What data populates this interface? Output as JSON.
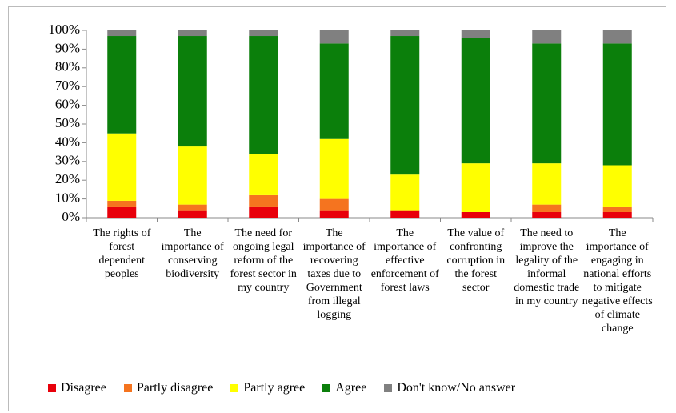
{
  "chart_data": {
    "type": "stacked_bar",
    "categories": [
      "The rights of forest dependent peoples",
      "The importance of conserving biodiversity",
      "The need for ongoing legal reform of the forest sector in my country",
      "The importance of recovering taxes due to Government from illegal logging",
      "The importance of effective enforcement of forest laws",
      "The value of confronting corruption in the forest sector",
      "The need to improve the legality of the informal domestic trade in my country",
      "The importance of engaging in national efforts to mitigate negative effects of climate change"
    ],
    "series": [
      {
        "name": "Disagree",
        "color": "#e8000b",
        "values": [
          6,
          4,
          6,
          4,
          4,
          3,
          3,
          3
        ]
      },
      {
        "name": "Partly disagree",
        "color": "#f5741f",
        "values": [
          3,
          3,
          6,
          6,
          0,
          0,
          4,
          3
        ]
      },
      {
        "name": "Partly agree",
        "color": "#ffff00",
        "values": [
          36,
          31,
          22,
          32,
          19,
          26,
          22,
          22
        ]
      },
      {
        "name": "Agree",
        "color": "#0b7f0b",
        "values": [
          52,
          59,
          63,
          51,
          74,
          67,
          64,
          65
        ]
      },
      {
        "name": "Don't know/No answer",
        "color": "#808080",
        "values": [
          3,
          3,
          3,
          7,
          3,
          4,
          7,
          7
        ]
      }
    ],
    "ylim": [
      0,
      100
    ],
    "yticks": [
      {
        "value": 0,
        "label": "0%"
      },
      {
        "value": 10,
        "label": "10%"
      },
      {
        "value": 20,
        "label": "20%"
      },
      {
        "value": 30,
        "label": "30%"
      },
      {
        "value": 40,
        "label": "40%"
      },
      {
        "value": 50,
        "label": "50%"
      },
      {
        "value": 60,
        "label": "60%"
      },
      {
        "value": 70,
        "label": "70%"
      },
      {
        "value": 80,
        "label": "80%"
      },
      {
        "value": 90,
        "label": "90%"
      },
      {
        "value": 100,
        "label": "100%"
      }
    ]
  }
}
